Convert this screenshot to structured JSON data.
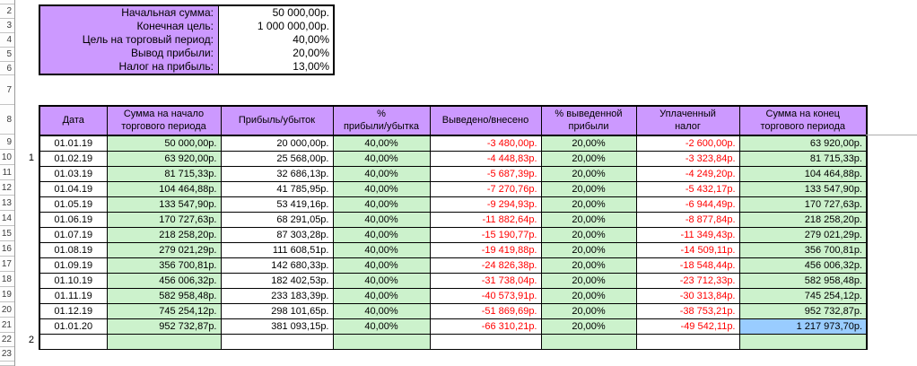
{
  "colors": {
    "header_fill": "#cc99ff",
    "green_fill": "#ccf2cc",
    "highlight_fill": "#99ccff",
    "negative_text": "#ff0000",
    "border": "#000000"
  },
  "settings": {
    "rows": [
      {
        "label": "Начальная сумма:",
        "value": "50 000,00р."
      },
      {
        "label": "Конечная цель:",
        "value": "1 000 000,00р."
      },
      {
        "label": "Цель на торговый период:",
        "value": "40,00%"
      },
      {
        "label": "Вывод прибыли:",
        "value": "20,00%"
      },
      {
        "label": "Налог на прибыль:",
        "value": "13,00%"
      }
    ]
  },
  "table": {
    "headers": [
      "Дата",
      "Сумма на начало\nторгового периода",
      "Прибыль/убыток",
      "%\nприбыли/убытка",
      "Выведено/внесено",
      "% выведенной\nприбыли",
      "Уплаченный\nналог",
      "Сумма на конец\nторгового периода"
    ],
    "rows": [
      [
        "01.01.19",
        "50 000,00р.",
        "20 000,00р.",
        "40,00%",
        "-3 480,00р.",
        "20,00%",
        "-2 600,00р.",
        "63 920,00р."
      ],
      [
        "01.02.19",
        "63 920,00р.",
        "25 568,00р.",
        "40,00%",
        "-4 448,83р.",
        "20,00%",
        "-3 323,84р.",
        "81 715,33р."
      ],
      [
        "01.03.19",
        "81 715,33р.",
        "32 686,13р.",
        "40,00%",
        "-5 687,39р.",
        "20,00%",
        "-4 249,20р.",
        "104 464,88р."
      ],
      [
        "01.04.19",
        "104 464,88р.",
        "41 785,95р.",
        "40,00%",
        "-7 270,76р.",
        "20,00%",
        "-5 432,17р.",
        "133 547,90р."
      ],
      [
        "01.05.19",
        "133 547,90р.",
        "53 419,16р.",
        "40,00%",
        "-9 294,93р.",
        "20,00%",
        "-6 944,49р.",
        "170 727,63р."
      ],
      [
        "01.06.19",
        "170 727,63р.",
        "68 291,05р.",
        "40,00%",
        "-11 882,64р.",
        "20,00%",
        "-8 877,84р.",
        "218 258,20р."
      ],
      [
        "01.07.19",
        "218 258,20р.",
        "87 303,28р.",
        "40,00%",
        "-15 190,77р.",
        "20,00%",
        "-11 349,43р.",
        "279 021,29р."
      ],
      [
        "01.08.19",
        "279 021,29р.",
        "111 608,51р.",
        "40,00%",
        "-19 419,88р.",
        "20,00%",
        "-14 509,11р.",
        "356 700,81р."
      ],
      [
        "01.09.19",
        "356 700,81р.",
        "142 680,33р.",
        "40,00%",
        "-24 826,38р.",
        "20,00%",
        "-18 548,44р.",
        "456 006,32р."
      ],
      [
        "01.10.19",
        "456 006,32р.",
        "182 402,53р.",
        "40,00%",
        "-31 738,04р.",
        "20,00%",
        "-23 712,33р.",
        "582 958,48р."
      ],
      [
        "01.11.19",
        "582 958,48р.",
        "233 183,39р.",
        "40,00%",
        "-40 573,91р.",
        "20,00%",
        "-30 313,84р.",
        "745 254,12р."
      ],
      [
        "01.12.19",
        "745 254,12р.",
        "298 101,65р.",
        "40,00%",
        "-51 869,69р.",
        "20,00%",
        "-38 753,21р.",
        "952 732,87р."
      ],
      [
        "01.01.20",
        "952 732,87р.",
        "381 093,15р.",
        "40,00%",
        "-66 310,21р.",
        "20,00%",
        "-49 542,11р.",
        "1 217 973,70р."
      ]
    ],
    "highlight": {
      "row_index": 12,
      "col_index": 7
    }
  },
  "gutter": {
    "row_labels": [
      "",
      "2",
      "3",
      "4",
      "5",
      "6",
      "7",
      "8",
      "9",
      "10",
      "11",
      "12",
      "13",
      "14",
      "15",
      "16",
      "17",
      "18",
      "19",
      "20",
      "21",
      "22",
      "23",
      ""
    ]
  },
  "group_markers": [
    {
      "label": "1"
    },
    {
      "label": "2"
    }
  ]
}
